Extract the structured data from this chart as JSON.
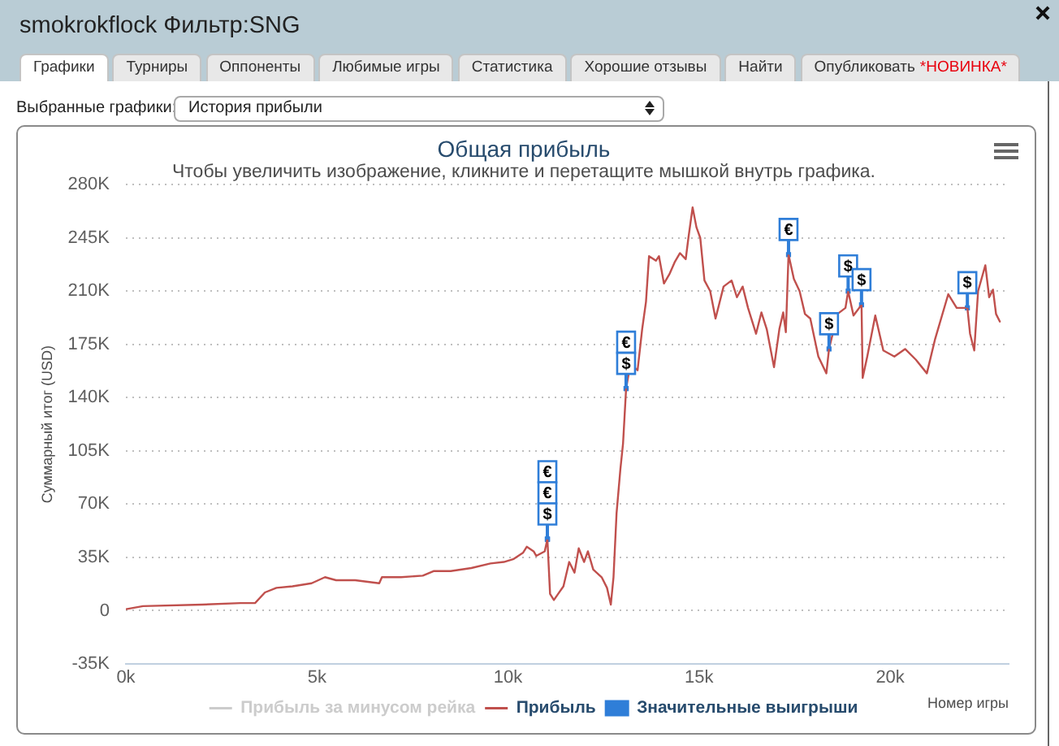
{
  "chart_data": {
    "type": "line",
    "title": "Общая прибыль",
    "subtitle": "Чтобы увеличить изображение, кликните и перетащите мышкой внутрь графика.",
    "xlabel": "Номер игры",
    "ylabel": "Суммарный итог (USD)",
    "annotations": [
      "smokrokflock Фильтр:SNG",
      "Графики",
      "Турниры",
      "Оппоненты",
      "Любимые игры",
      "Статистика",
      "Хорошие отзывы",
      "Найти",
      "Опубликовать",
      "*НОВИНКА*",
      "Выбранные графики:",
      "История прибыли"
    ],
    "xlim": [
      0,
      23100
    ],
    "xticks": [
      {
        "value": 0,
        "label": "0k"
      },
      {
        "value": 5000,
        "label": "5k"
      },
      {
        "value": 10000,
        "label": "10k"
      },
      {
        "value": 15000,
        "label": "15k"
      },
      {
        "value": 20000,
        "label": "20k"
      }
    ],
    "ylim": [
      -35000,
      280000
    ],
    "yticks": [
      {
        "value": -35000,
        "label": "-35K"
      },
      0,
      {
        "value": 35000,
        "label": "35K"
      },
      {
        "value": 70000,
        "label": "70K"
      },
      {
        "value": 105000,
        "label": "105K"
      },
      {
        "value": 140000,
        "label": "140K"
      },
      {
        "value": 175000,
        "label": "175K"
      },
      {
        "value": 210000,
        "label": "210K"
      },
      {
        "value": 245000,
        "label": "245K"
      },
      {
        "value": 280000,
        "label": "280K"
      }
    ],
    "grid": "y",
    "legend": "bottom",
    "series": [
      {
        "name": "Прибыль за минусом рейка",
        "color": "#cccccc"
      },
      {
        "name": "Прибыль",
        "color": "#c0504d",
        "x": [
          0,
          450,
          2000,
          3000,
          3380,
          3640,
          3940,
          4360,
          4860,
          5210,
          5500,
          6000,
          6630,
          6700,
          7200,
          7770,
          8050,
          8500,
          9040,
          9540,
          9890,
          10150,
          10390,
          10490,
          10670,
          10740,
          10960,
          11030,
          11100,
          11200,
          11310,
          11450,
          11600,
          11740,
          11850,
          11990,
          12090,
          12230,
          12450,
          12590,
          12690,
          12760,
          12840,
          12940,
          13010,
          13090,
          13160,
          13300,
          13390,
          13510,
          13610,
          13690,
          13870,
          13950,
          14080,
          14220,
          14360,
          14500,
          14650,
          14720,
          14830,
          14930,
          15030,
          15140,
          15290,
          15430,
          15640,
          15850,
          15990,
          16140,
          16280,
          16490,
          16630,
          16770,
          16960,
          17100,
          17200,
          17270,
          17340,
          17480,
          17630,
          17770,
          17910,
          18120,
          18330,
          18400,
          18620,
          18830,
          18900,
          19040,
          19250,
          19280,
          19400,
          19610,
          19820,
          20110,
          20390,
          20670,
          20960,
          21170,
          21520,
          21740,
          22020,
          22090,
          22200,
          22300,
          22490,
          22590,
          22690,
          22770,
          22870
        ],
        "values": [
          1000,
          3000,
          4000,
          5000,
          5000,
          12000,
          15000,
          16000,
          18000,
          22000,
          20000,
          20000,
          18000,
          22000,
          22000,
          23000,
          26000,
          26000,
          28000,
          31000,
          32000,
          34000,
          38000,
          42000,
          39000,
          36000,
          39000,
          47000,
          11000,
          7000,
          11000,
          16000,
          32000,
          25000,
          41000,
          32000,
          39000,
          27000,
          22000,
          15000,
          4000,
          22000,
          64000,
          93000,
          110000,
          146000,
          156000,
          160000,
          158000,
          185000,
          203000,
          233000,
          230000,
          233000,
          215000,
          221000,
          229000,
          235000,
          231000,
          245000,
          265000,
          252000,
          245000,
          217000,
          210000,
          192000,
          213000,
          217000,
          206000,
          213000,
          199000,
          182000,
          196000,
          185000,
          160000,
          185000,
          196000,
          183000,
          234000,
          218000,
          210000,
          195000,
          192000,
          167000,
          156000,
          172000,
          195000,
          199000,
          210000,
          194000,
          201000,
          153000,
          167000,
          194000,
          171000,
          167000,
          172000,
          165000,
          156000,
          178000,
          208000,
          199000,
          199000,
          182000,
          171000,
          210000,
          227000,
          206000,
          211000,
          195000,
          190000
        ]
      },
      {
        "name": "Значительные выигрыши",
        "type": "scatter",
        "color": "#2f7ed8",
        "x": [
          11030,
          11030,
          11030,
          13090,
          13090,
          17340,
          18400,
          18900,
          19250,
          22020
        ],
        "values": [
          47000,
          47000,
          47000,
          146000,
          146000,
          234000,
          172000,
          210000,
          201000,
          199000
        ],
        "value_labels": [
          "€",
          "€",
          "$",
          "€",
          "$",
          "€",
          "$",
          "$",
          "$",
          "$"
        ]
      }
    ]
  }
}
